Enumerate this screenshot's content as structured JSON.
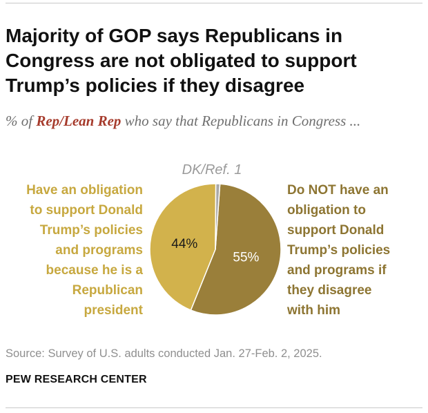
{
  "title": "Majority of GOP says Republicans in Congress are not obligated to support Trump’s policies if they disagree",
  "subtitle": {
    "prefix": "% of ",
    "highlight": "Rep/Lean Rep",
    "suffix": " who say that Republicans in Congress ..."
  },
  "colors": {
    "have_obligation": "#d2b24c",
    "not_obligated": "#9a7f3a",
    "dk_ref": "#a9a9a9",
    "highlight": "#a63b2c"
  },
  "chart_data": {
    "type": "pie",
    "title": "Majority of GOP says Republicans in Congress are not obligated to support Trump’s policies if they disagree",
    "slices": [
      {
        "key": "not_obligated",
        "label": "Do NOT have an obligation to support Donald Trump’s policies and programs if they disagree with him",
        "value": 55,
        "display": "55%"
      },
      {
        "key": "have_obligation",
        "label": "Have an obligation to support Donald Trump’s policies and programs because he is a Republican president",
        "value": 44,
        "display": "44%"
      },
      {
        "key": "dk_ref",
        "label": "DK/Ref.",
        "value": 1,
        "display": "DK/Ref. 1"
      }
    ]
  },
  "labels": {
    "have_obligation": "Have an obligation\nto support Donald\nTrump’s policies\nand programs\nbecause he is a\nRepublican\npresident",
    "not_obligated": "Do NOT have an\nobligation to\nsupport Donald\nTrump’s policies\nand programs if\nthey disagree\nwith him",
    "dk_ref": "DK/Ref. 1"
  },
  "source": "Source: Survey of U.S. adults conducted Jan. 27-Feb. 2, 2025.",
  "org": "PEW RESEARCH CENTER"
}
